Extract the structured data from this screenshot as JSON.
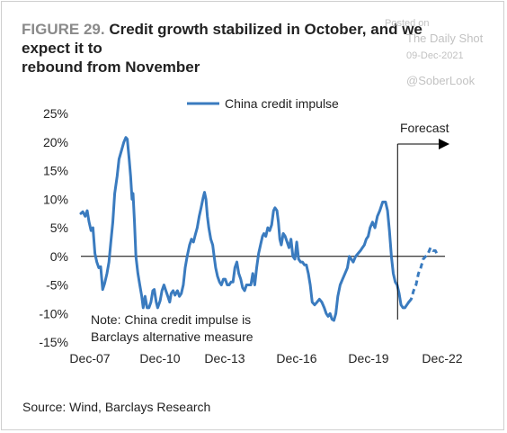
{
  "figure_label": "FIGURE 29.",
  "title_line1": "Credit growth stabilized in October, and we expect it to",
  "title_line2": "rebound from November",
  "watermark": {
    "posted": "Posted on",
    "site": "The Daily Shot",
    "date": "09-Dec-2021",
    "handle": "@SoberLook"
  },
  "source": "Source: Wind, Barclays Research",
  "chart_data": {
    "type": "line",
    "legend": "China credit impulse",
    "legend_position": "top-center",
    "forecast_label": "Forecast",
    "note_lines": [
      "Note: China credit impulse is",
      "Barclays alternative measure"
    ],
    "x_tick_labels": [
      "Dec-07",
      "Dec-10",
      "Dec-13",
      "Dec-16",
      "Dec-19",
      "Dec-22"
    ],
    "x_range": [
      2007.92,
      2023.0
    ],
    "y_tick_labels": [
      "25%",
      "20%",
      "15%",
      "10%",
      "5%",
      "0%",
      "-5%",
      "-10%",
      "-15%"
    ],
    "y_ticks": [
      25,
      20,
      15,
      10,
      5,
      0,
      -5,
      -10,
      -15
    ],
    "ylim": [
      -15,
      25
    ],
    "ylabel": "",
    "xlabel": "",
    "grid": false,
    "zero_line": true,
    "color": "#3a7bbf",
    "forecast_start": 2021.0,
    "series": [
      {
        "name": "China credit impulse",
        "style": "solid",
        "points": [
          [
            2007.92,
            7.5
          ],
          [
            2008.0,
            7.8
          ],
          [
            2008.1,
            7.0
          ],
          [
            2008.18,
            8.0
          ],
          [
            2008.26,
            6.0
          ],
          [
            2008.34,
            4.5
          ],
          [
            2008.42,
            5.0
          ],
          [
            2008.5,
            0.5
          ],
          [
            2008.58,
            -1.0
          ],
          [
            2008.66,
            -2.0
          ],
          [
            2008.74,
            -1.8
          ],
          [
            2008.82,
            -5.8
          ],
          [
            2008.9,
            -4.8
          ],
          [
            2009.0,
            -3.0
          ],
          [
            2009.08,
            -1.0
          ],
          [
            2009.16,
            2.5
          ],
          [
            2009.24,
            6.0
          ],
          [
            2009.32,
            11.0
          ],
          [
            2009.42,
            14.0
          ],
          [
            2009.5,
            17.0
          ],
          [
            2009.6,
            18.5
          ],
          [
            2009.7,
            20.0
          ],
          [
            2009.78,
            20.8
          ],
          [
            2009.84,
            20.5
          ],
          [
            2009.92,
            17.0
          ],
          [
            2009.98,
            14.0
          ],
          [
            2010.04,
            10.0
          ],
          [
            2010.08,
            11.0
          ],
          [
            2010.14,
            6.0
          ],
          [
            2010.2,
            0.0
          ],
          [
            2010.28,
            -3.0
          ],
          [
            2010.36,
            -5.0
          ],
          [
            2010.44,
            -7.0
          ],
          [
            2010.5,
            -9.0
          ],
          [
            2010.58,
            -7.0
          ],
          [
            2010.66,
            -9.0
          ],
          [
            2010.74,
            -9.0
          ],
          [
            2010.82,
            -8.0
          ],
          [
            2010.9,
            -6.0
          ],
          [
            2010.96,
            -5.8
          ],
          [
            2011.04,
            -8.0
          ],
          [
            2011.1,
            -9.0
          ],
          [
            2011.2,
            -7.8
          ],
          [
            2011.28,
            -6.0
          ],
          [
            2011.36,
            -5.0
          ],
          [
            2011.44,
            -6.0
          ],
          [
            2011.52,
            -7.0
          ],
          [
            2011.6,
            -8.0
          ],
          [
            2011.66,
            -6.5
          ],
          [
            2011.74,
            -6.0
          ],
          [
            2011.82,
            -6.8
          ],
          [
            2011.92,
            -6.0
          ],
          [
            2012.0,
            -7.0
          ],
          [
            2012.08,
            -6.5
          ],
          [
            2012.16,
            -5.0
          ],
          [
            2012.24,
            -2.0
          ],
          [
            2012.32,
            0.0
          ],
          [
            2012.42,
            2.0
          ],
          [
            2012.5,
            3.0
          ],
          [
            2012.58,
            2.5
          ],
          [
            2012.66,
            3.8
          ],
          [
            2012.74,
            5.0
          ],
          [
            2012.82,
            7.0
          ],
          [
            2012.9,
            8.5
          ],
          [
            2012.98,
            10.2
          ],
          [
            2013.04,
            11.2
          ],
          [
            2013.1,
            10.0
          ],
          [
            2013.16,
            7.0
          ],
          [
            2013.22,
            5.0
          ],
          [
            2013.3,
            3.0
          ],
          [
            2013.38,
            2.0
          ],
          [
            2013.44,
            0.0
          ],
          [
            2013.5,
            -2.0
          ],
          [
            2013.58,
            -3.5
          ],
          [
            2013.66,
            -4.5
          ],
          [
            2013.74,
            -5.0
          ],
          [
            2013.82,
            -4.0
          ],
          [
            2013.9,
            -4.0
          ],
          [
            2013.98,
            -5.0
          ],
          [
            2014.06,
            -5.0
          ],
          [
            2014.14,
            -4.5
          ],
          [
            2014.22,
            -4.5
          ],
          [
            2014.3,
            -2.0
          ],
          [
            2014.38,
            -1.0
          ],
          [
            2014.46,
            -3.0
          ],
          [
            2014.54,
            -4.0
          ],
          [
            2014.62,
            -5.5
          ],
          [
            2014.7,
            -6.0
          ],
          [
            2014.78,
            -5.0
          ],
          [
            2014.86,
            -5.0
          ],
          [
            2014.96,
            -5.0
          ],
          [
            2015.04,
            -3.0
          ],
          [
            2015.12,
            -5.0
          ],
          [
            2015.2,
            -2.0
          ],
          [
            2015.28,
            0.5
          ],
          [
            2015.36,
            2.0
          ],
          [
            2015.44,
            3.5
          ],
          [
            2015.5,
            4.0
          ],
          [
            2015.58,
            3.5
          ],
          [
            2015.66,
            5.0
          ],
          [
            2015.74,
            4.5
          ],
          [
            2015.82,
            5.5
          ],
          [
            2015.9,
            8.0
          ],
          [
            2015.96,
            8.5
          ],
          [
            2016.04,
            8.0
          ],
          [
            2016.1,
            6.0
          ],
          [
            2016.16,
            3.0
          ],
          [
            2016.22,
            2.0
          ],
          [
            2016.3,
            4.0
          ],
          [
            2016.38,
            3.5
          ],
          [
            2016.46,
            2.5
          ],
          [
            2016.54,
            1.5
          ],
          [
            2016.62,
            3.0
          ],
          [
            2016.7,
            0.0
          ],
          [
            2016.78,
            -0.5
          ],
          [
            2016.86,
            2.5
          ],
          [
            2016.94,
            -0.5
          ],
          [
            2017.02,
            -1.0
          ],
          [
            2017.1,
            -1.0
          ],
          [
            2017.18,
            -1.5
          ],
          [
            2017.26,
            -1.5
          ],
          [
            2017.34,
            -3.0
          ],
          [
            2017.42,
            -5.0
          ],
          [
            2017.5,
            -8.0
          ],
          [
            2017.6,
            -8.5
          ],
          [
            2017.7,
            -8.0
          ],
          [
            2017.8,
            -7.5
          ],
          [
            2017.9,
            -8.0
          ],
          [
            2018.0,
            -9.0
          ],
          [
            2018.08,
            -10.0
          ],
          [
            2018.16,
            -10.5
          ],
          [
            2018.24,
            -10.0
          ],
          [
            2018.32,
            -11.0
          ],
          [
            2018.4,
            -11.2
          ],
          [
            2018.48,
            -10.0
          ],
          [
            2018.56,
            -7.0
          ],
          [
            2018.66,
            -5.0
          ],
          [
            2018.76,
            -4.0
          ],
          [
            2018.86,
            -3.0
          ],
          [
            2018.96,
            -2.0
          ],
          [
            2019.04,
            0.0
          ],
          [
            2019.12,
            -0.5
          ],
          [
            2019.2,
            -1.0
          ],
          [
            2019.3,
            0.0
          ],
          [
            2019.4,
            0.5
          ],
          [
            2019.5,
            1.0
          ],
          [
            2019.58,
            1.5
          ],
          [
            2019.66,
            2.0
          ],
          [
            2019.74,
            3.0
          ],
          [
            2019.82,
            3.5
          ],
          [
            2019.9,
            5.0
          ],
          [
            2020.0,
            6.0
          ],
          [
            2020.1,
            5.0
          ],
          [
            2020.2,
            7.0
          ],
          [
            2020.3,
            8.0
          ],
          [
            2020.42,
            9.5
          ],
          [
            2020.54,
            9.5
          ],
          [
            2020.62,
            8.0
          ],
          [
            2020.7,
            4.5
          ],
          [
            2020.78,
            0.0
          ],
          [
            2020.86,
            -3.0
          ],
          [
            2020.94,
            -4.5
          ],
          [
            2021.02,
            -5.0
          ],
          [
            2021.1,
            -6.5
          ],
          [
            2021.18,
            -8.5
          ],
          [
            2021.26,
            -9.0
          ],
          [
            2021.34,
            -9.0
          ],
          [
            2021.42,
            -8.5
          ],
          [
            2021.5,
            -8.0
          ]
        ]
      },
      {
        "name": "Forecast",
        "style": "dashed",
        "points": [
          [
            2021.5,
            -8.0
          ],
          [
            2021.6,
            -7.5
          ],
          [
            2021.7,
            -6.0
          ],
          [
            2021.8,
            -5.0
          ],
          [
            2021.9,
            -3.0
          ],
          [
            2022.0,
            -2.0
          ],
          [
            2022.1,
            -0.5
          ],
          [
            2022.2,
            0.0
          ],
          [
            2022.3,
            0.5
          ],
          [
            2022.4,
            1.5
          ],
          [
            2022.5,
            1.0
          ],
          [
            2022.6,
            1.0
          ],
          [
            2022.66,
            0.5
          ]
        ]
      }
    ]
  }
}
